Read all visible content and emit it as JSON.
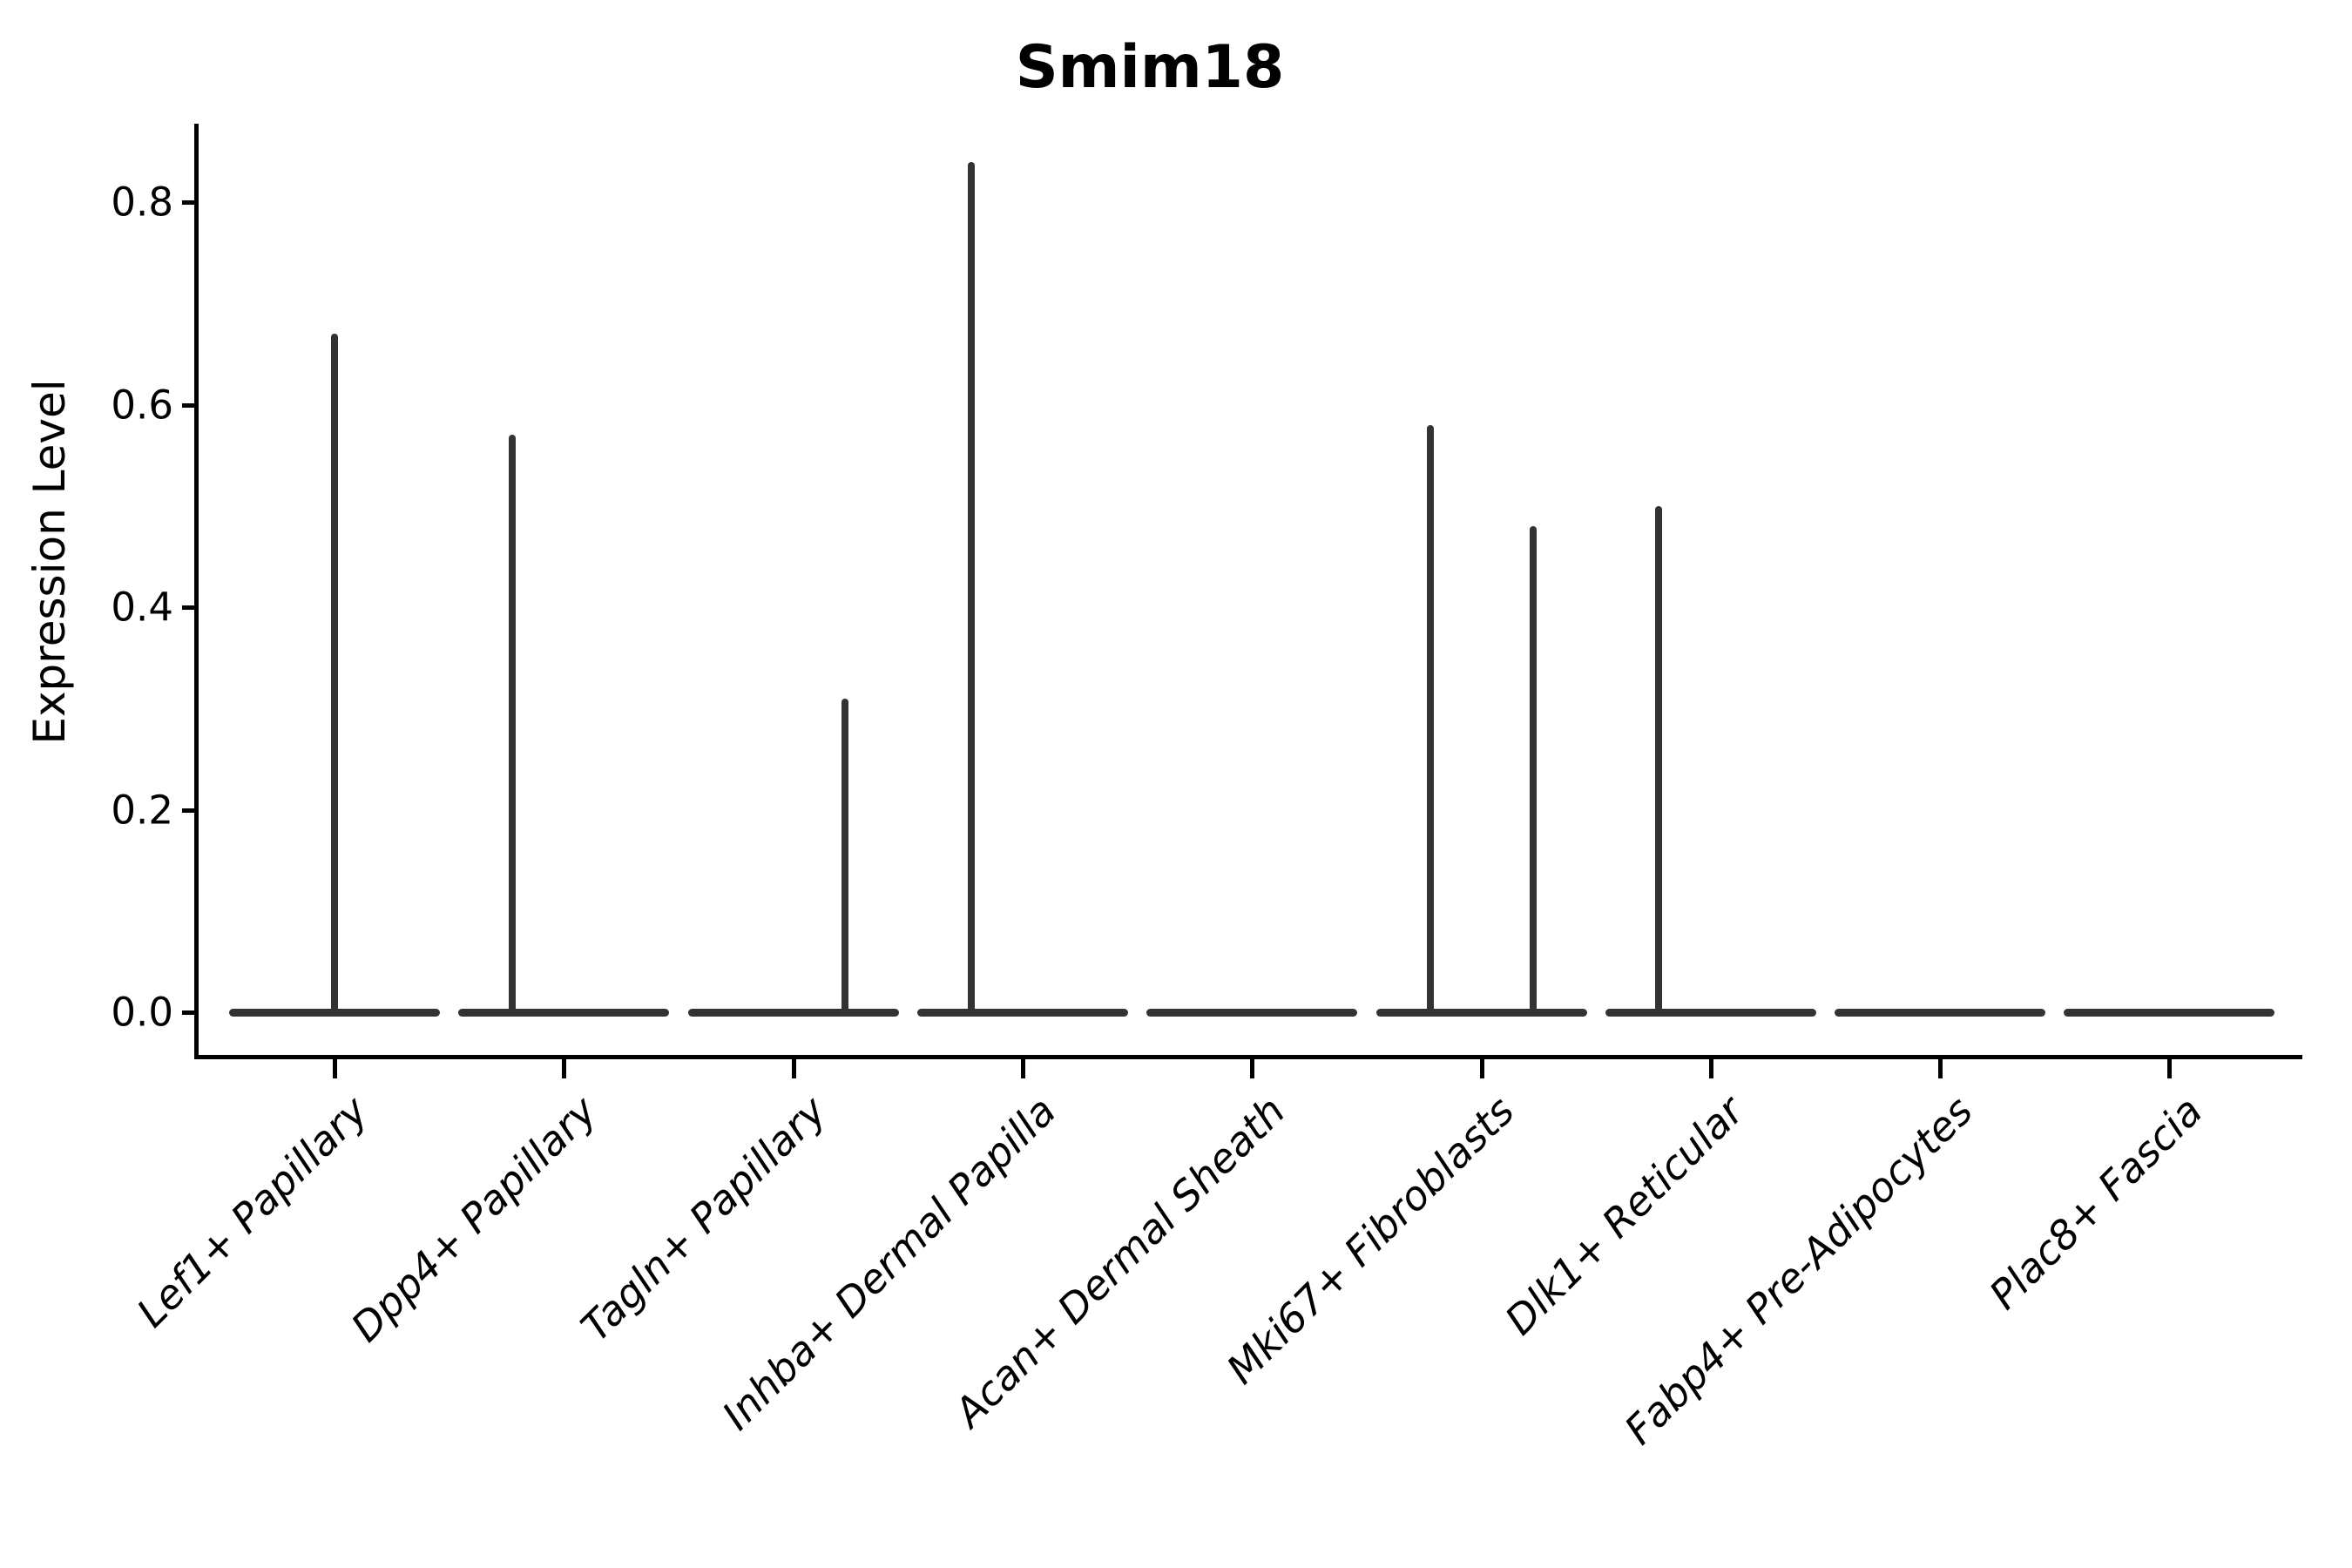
{
  "title": "Smim18",
  "y_axis": {
    "label": "Expression Level",
    "tick_labels": [
      "0.0",
      "0.2",
      "0.4",
      "0.6",
      "0.8"
    ]
  },
  "chart_data": {
    "type": "violin",
    "title": "Smim18",
    "xlabel": "",
    "ylabel": "Expression Level",
    "ylim": [
      -0.04,
      0.88
    ],
    "yticks": [
      0.0,
      0.2,
      0.4,
      0.6,
      0.8
    ],
    "grid": false,
    "legend": "none",
    "violin_color": "#333333",
    "axis_color": "#000000",
    "categories": [
      "Lef1+ Papillary",
      "Dpp4+ Papillary",
      "Tagln+ Papillary",
      "Inhba+ Dermal Papilla",
      "Acan+ Dermal Sheath",
      "Mki67+ Fibroblasts",
      "Dlk1+ Reticular",
      "Fabp4+ Pre-Adipocytes",
      "Plac8+ Fascia"
    ],
    "series": [
      {
        "category": "Lef1+ Papillary",
        "body_value": 0.0,
        "spikes": [
          {
            "value": 0.67,
            "dx": 0
          }
        ]
      },
      {
        "category": "Dpp4+ Papillary",
        "body_value": 0.0,
        "spikes": [
          {
            "value": 0.57,
            "dx": -59
          }
        ]
      },
      {
        "category": "Tagln+ Papillary",
        "body_value": 0.0,
        "spikes": [
          {
            "value": 0.31,
            "dx": 59
          }
        ]
      },
      {
        "category": "Inhba+ Dermal Papilla",
        "body_value": 0.0,
        "spikes": [
          {
            "value": 0.84,
            "dx": -59
          }
        ]
      },
      {
        "category": "Acan+ Dermal Sheath",
        "body_value": 0.0,
        "spikes": []
      },
      {
        "category": "Mki67+ Fibroblasts",
        "body_value": 0.0,
        "spikes": [
          {
            "value": 0.58,
            "dx": -59
          },
          {
            "value": 0.48,
            "dx": 59
          }
        ]
      },
      {
        "category": "Dlk1+ Reticular",
        "body_value": 0.0,
        "spikes": [
          {
            "value": 0.5,
            "dx": -60
          }
        ]
      },
      {
        "category": "Fabp4+ Pre-Adipocytes",
        "body_value": 0.0,
        "spikes": []
      },
      {
        "category": "Plac8+ Fascia",
        "body_value": 0.0,
        "spikes": []
      }
    ]
  }
}
